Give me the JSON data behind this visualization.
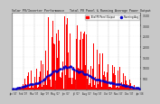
{
  "title": "Solar PV/Inverter Performance   Total PV Panel & Running Average Power Output",
  "bg_color": "#c8c8c8",
  "plot_bg": "#ffffff",
  "bar_color": "#ff0000",
  "avg_color": "#0000cc",
  "ylim": [
    0,
    3600
  ],
  "yticks": [
    500,
    1000,
    1500,
    2000,
    2500,
    3000,
    3500
  ],
  "ytick_labels": [
    "500",
    "1000",
    "1500",
    "2000",
    "2500",
    "3000",
    "3500"
  ],
  "n_points": 365,
  "seed": 7,
  "month_labels": [
    "Jan '07",
    "Feb '07",
    "Mar '07",
    "Apr '07",
    "May '07",
    "Jun '07",
    "Jul '07",
    "Aug '07",
    "Sep '07",
    "Oct '07",
    "Nov '07",
    "Dec '07",
    "Jan '08"
  ],
  "legend_labels": [
    "Total PV Panel Output",
    "Running Avg"
  ]
}
